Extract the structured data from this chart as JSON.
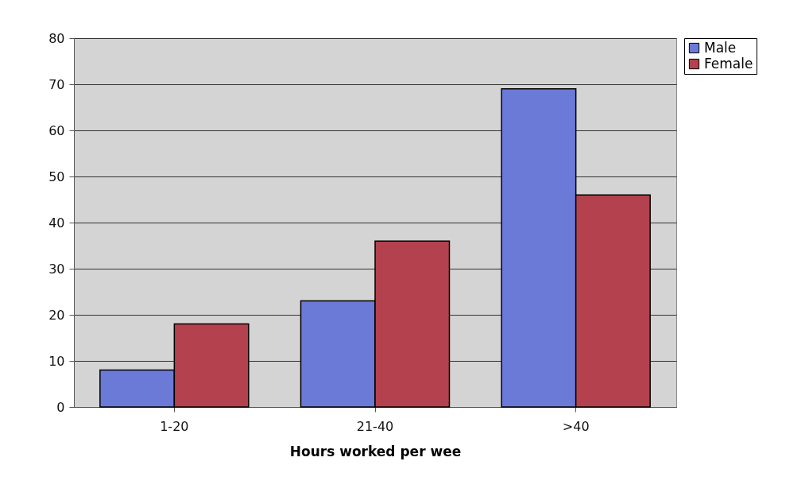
{
  "chart_data": {
    "type": "bar",
    "xlabel": "Hours worked per wee",
    "categories": [
      "1-20",
      "21-40",
      ">40"
    ],
    "series": [
      {
        "name": "Male",
        "color": "#6b7ad6",
        "values": [
          8,
          23,
          69
        ]
      },
      {
        "name": "Female",
        "color": "#b4414e",
        "values": [
          18,
          36,
          46
        ]
      }
    ],
    "ylim": [
      0,
      80
    ],
    "yticks": [
      0,
      10,
      20,
      30,
      40,
      50,
      60,
      70,
      80
    ],
    "grid": "y",
    "legend": "right"
  }
}
